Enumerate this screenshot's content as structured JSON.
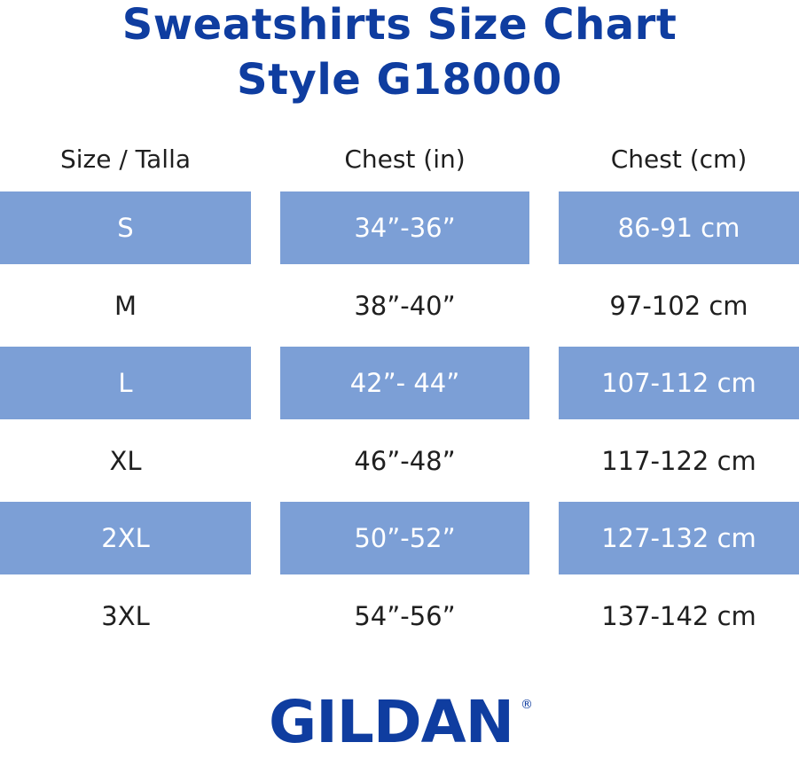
{
  "title": {
    "line1": "Sweatshirts Size Chart",
    "line2": "Style G18000"
  },
  "table": {
    "headers": [
      "Size / Talla",
      "Chest (in)",
      "Chest (cm)"
    ],
    "rows": [
      {
        "size": "S",
        "chest_in": "34”-36”",
        "chest_cm": "86-91 cm",
        "shaded": true
      },
      {
        "size": "M",
        "chest_in": "38”-40”",
        "chest_cm": "97-102 cm",
        "shaded": false
      },
      {
        "size": "L",
        "chest_in": "42”- 44”",
        "chest_cm": "107-112 cm",
        "shaded": true
      },
      {
        "size": "XL",
        "chest_in": "46”-48”",
        "chest_cm": "117-122 cm",
        "shaded": false
      },
      {
        "size": "2XL",
        "chest_in": "50”-52”",
        "chest_cm": "127-132 cm",
        "shaded": true
      },
      {
        "size": "3XL",
        "chest_in": "54”-56”",
        "chest_cm": "137-142 cm",
        "shaded": false
      }
    ]
  },
  "logo": {
    "text": "GILDAN",
    "mark": "®",
    "color": "#0f3da0"
  },
  "colors": {
    "title": "#0f3da0",
    "row_shade": "#7c9fd6",
    "text": "#1f1f1f"
  }
}
